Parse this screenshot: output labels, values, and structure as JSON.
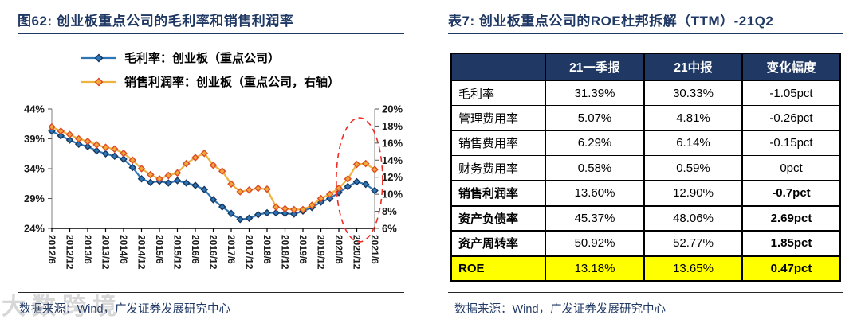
{
  "left_panel": {
    "title": "图62:  创业板重点公司的毛利率和销售利润率",
    "source": "数据来源：Wind，广发证券发展研究中心"
  },
  "right_panel": {
    "title": "表7:  创业板重点公司的ROE杜邦拆解（TTM）-21Q2",
    "source": "数据来源：Wind，广发证券发展研究中心"
  },
  "watermark": {
    "text": "大数跨境"
  },
  "colors": {
    "title_navy": "#1F3864",
    "table_header_bg": "#1F3864",
    "roe_highlight_yellow": "#FFFF00",
    "annotation_red": "#EE2C24",
    "gross_margin_blue": "#2E75B6",
    "sales_margin_orange": "#F0B23E"
  },
  "chart_data": {
    "type": "line",
    "title": "创业板重点公司的毛利率和销售利润率",
    "x_quarters": [
      "2012/6",
      "2012/9",
      "2012/12",
      "2013/3",
      "2013/6",
      "2013/9",
      "2013/12",
      "2014/3",
      "2014/6",
      "2014/9",
      "2014/12",
      "2015/3",
      "2015/6",
      "2015/9",
      "2015/12",
      "2016/3",
      "2016/6",
      "2016/9",
      "2016/12",
      "2017/3",
      "2017/6",
      "2017/9",
      "2017/12",
      "2018/3",
      "2018/6",
      "2018/9",
      "2018/12",
      "2019/3",
      "2019/6",
      "2019/9",
      "2019/12",
      "2020/3",
      "2020/6",
      "2020/9",
      "2020/12",
      "2021/3",
      "2021/6"
    ],
    "x_tick_labels": [
      "2012/6",
      "2012/12",
      "2013/6",
      "2013/12",
      "2014/6",
      "2014/12",
      "2015/6",
      "2015/12",
      "2016/6",
      "2016/12",
      "2017/6",
      "2017/12",
      "2018/6",
      "2018/12",
      "2019/6",
      "2019/12",
      "2020/6",
      "2020/12",
      "2021/6"
    ],
    "series": [
      {
        "name": "毛利率：创业板（重点公司）",
        "axis": "left",
        "values": [
          40.3,
          39.5,
          38.8,
          38.1,
          37.7,
          37.0,
          36.5,
          36.1,
          35.6,
          34.2,
          32.3,
          31.7,
          31.9,
          31.6,
          32.0,
          31.6,
          31.2,
          30.5,
          28.8,
          27.6,
          26.5,
          25.5,
          25.7,
          26.3,
          26.6,
          26.6,
          26.5,
          26.4,
          26.9,
          27.5,
          28.4,
          29.0,
          30.0,
          31.0,
          31.8,
          31.39,
          30.33
        ]
      },
      {
        "name": "销售利润率：创业板（重点公司，右轴）",
        "axis": "right",
        "values": [
          17.9,
          17.4,
          17.0,
          16.5,
          16.2,
          15.8,
          15.5,
          15.3,
          14.8,
          14.0,
          13.0,
          12.3,
          11.8,
          12.2,
          12.5,
          13.6,
          14.3,
          14.8,
          13.4,
          12.7,
          11.2,
          10.3,
          10.5,
          10.7,
          10.6,
          8.5,
          8.3,
          8.2,
          8.2,
          8.7,
          9.5,
          10.0,
          10.7,
          11.8,
          13.5,
          13.6,
          12.9
        ]
      }
    ],
    "legend": [
      {
        "label": "毛利率：创业板（重点公司）",
        "line_color": "#2E75B6",
        "marker_color": "#2E75B6",
        "marker_stroke": "#17375E"
      },
      {
        "label": "销售利润率：创业板（重点公司，右轴）",
        "line_color": "#F0B23E",
        "marker_color": "#F2A93B",
        "marker_stroke": "#DC4B27"
      }
    ],
    "left_axis": {
      "min": 24,
      "max": 44,
      "ticks": [
        "44%",
        "39%",
        "34%",
        "29%",
        "24%"
      ]
    },
    "right_axis": {
      "min": 6,
      "max": 20,
      "ticks": [
        "20%",
        "18%",
        "16%",
        "14%",
        "12%",
        "10%",
        "8%",
        "6%"
      ]
    },
    "annotation": {
      "shape": "dashed-ellipse",
      "color": "#EE2C24",
      "highlight_range": "2020/12–2021/6"
    },
    "grid": "off",
    "legend_position": "top-left"
  },
  "table": {
    "headers": [
      "",
      "21一季报",
      "21中报",
      "变化幅度"
    ],
    "rows": [
      {
        "label": "毛利率",
        "values": [
          "31.39%",
          "30.33%",
          "-1.05pct"
        ],
        "bold": false,
        "highlight": false
      },
      {
        "label": "管理费用率",
        "values": [
          "5.07%",
          "4.81%",
          "-0.26pct"
        ],
        "bold": false,
        "highlight": false
      },
      {
        "label": "销售费用率",
        "values": [
          "6.29%",
          "6.14%",
          "-0.15pct"
        ],
        "bold": false,
        "highlight": false
      },
      {
        "label": "财务费用率",
        "values": [
          "0.58%",
          "0.59%",
          "0pct"
        ],
        "bold": false,
        "highlight": false
      },
      {
        "label": "销售利润率",
        "values": [
          "13.60%",
          "12.90%",
          "-0.7pct"
        ],
        "bold": true,
        "highlight": false
      },
      {
        "label": "资产负债率",
        "values": [
          "45.37%",
          "48.06%",
          "2.69pct"
        ],
        "bold": true,
        "highlight": false
      },
      {
        "label": "资产周转率",
        "values": [
          "50.92%",
          "52.77%",
          "1.85pct"
        ],
        "bold": true,
        "highlight": false
      },
      {
        "label": "ROE",
        "values": [
          "13.18%",
          "13.65%",
          "0.47pct"
        ],
        "bold": true,
        "highlight": true
      }
    ]
  }
}
